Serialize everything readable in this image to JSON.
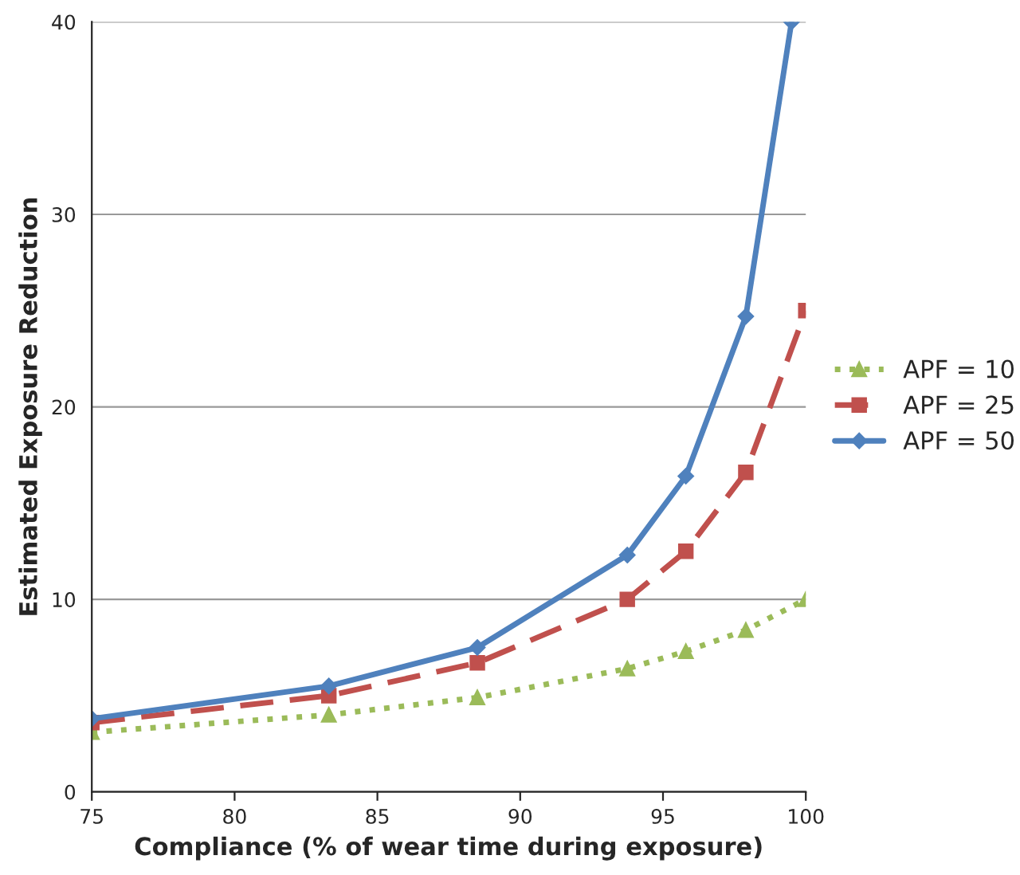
{
  "chart_data": {
    "type": "line",
    "xlabel": "Compliance (% of wear time during exposure)",
    "ylabel": "Estimated Exposure Reduction",
    "x": [
      75,
      83.3,
      88.5,
      93.75,
      95.8,
      97.9,
      100
    ],
    "series": [
      {
        "name": "APF = 10",
        "color": "#9bbb59",
        "marker": "triangle",
        "line_style": "dotted",
        "values": [
          3.1,
          4.0,
          4.9,
          6.4,
          7.3,
          8.4,
          10
        ]
      },
      {
        "name": "APF = 25",
        "color": "#c0504d",
        "marker": "square",
        "line_style": "dashed",
        "values": [
          3.6,
          5.0,
          6.7,
          10,
          12.5,
          16.6,
          25
        ]
      },
      {
        "name": "APF = 50",
        "color": "#4f81bd",
        "marker": "diamond",
        "line_style": "solid",
        "x": [
          75,
          83.3,
          88.5,
          93.75,
          95.8,
          97.9,
          99.5
        ],
        "values": [
          3.8,
          5.5,
          7.5,
          12.3,
          16.4,
          24.7,
          40
        ]
      }
    ],
    "xlim": [
      75,
      100
    ],
    "xticks": [
      75,
      80,
      85,
      90,
      95,
      100
    ],
    "ylim": [
      0,
      40
    ],
    "yticks": [
      0,
      10,
      20,
      30,
      40
    ],
    "grid": "y",
    "legend": "right"
  }
}
